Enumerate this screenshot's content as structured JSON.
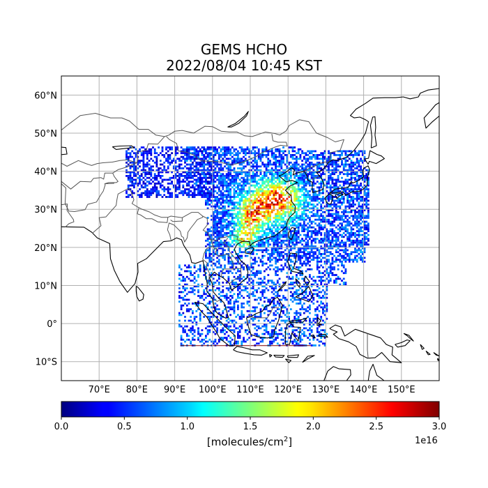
{
  "title": {
    "line1": "GEMS HCHO",
    "line2": "2022/08/04 10:45 KST"
  },
  "map": {
    "projection": "PlateCarree",
    "lon_range": [
      60,
      160
    ],
    "lat_range": [
      -15,
      65
    ],
    "gridlines": true,
    "lon_ticks": [
      "70°E",
      "80°E",
      "90°E",
      "100°E",
      "110°E",
      "120°E",
      "130°E",
      "140°E",
      "150°E"
    ],
    "lat_ticks": [
      "60°N",
      "50°N",
      "40°N",
      "30°N",
      "20°N",
      "10°N",
      "0°",
      "10°S"
    ],
    "coastline_color": "#000000",
    "border_color": "#555555"
  },
  "colorbar": {
    "colormap": "jet",
    "range": [
      0.0,
      3.0
    ],
    "ticks": [
      "0.0",
      "0.5",
      "1.0",
      "1.5",
      "2.0",
      "2.5",
      "3.0"
    ],
    "scale_label": "1e16",
    "unit_label_prefix": "[molecules/cm",
    "unit_label_sup": "2",
    "unit_label_suffix": "]"
  }
}
